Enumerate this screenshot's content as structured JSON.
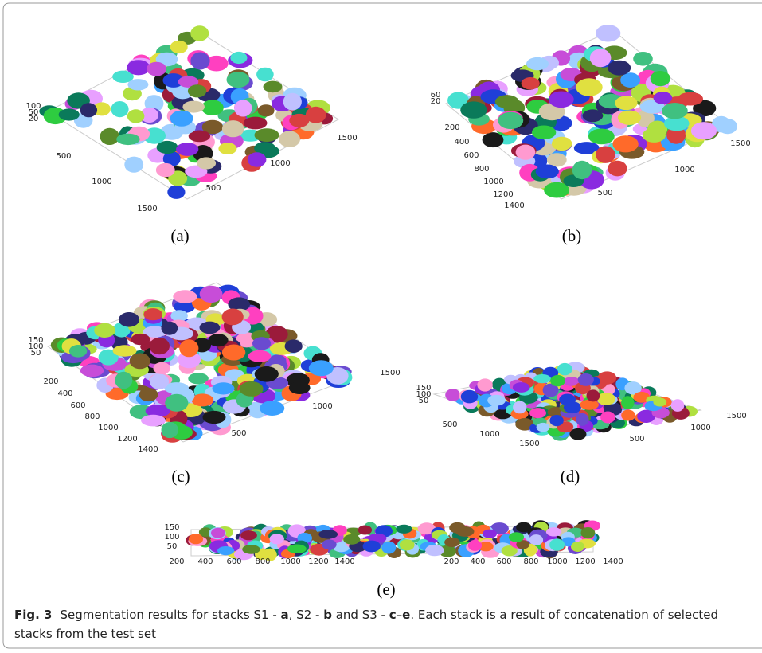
{
  "panels": [
    {
      "label": "(a)",
      "z_ticks": [
        100,
        50,
        20
      ],
      "left_ticks": [
        500,
        1000,
        1500
      ],
      "right_ticks": [
        500,
        1000,
        1500
      ]
    },
    {
      "label": "(b)",
      "z_ticks": [
        60,
        20
      ],
      "left_ticks": [
        200,
        400,
        600,
        800,
        1000,
        1200,
        1400
      ],
      "right_ticks": [
        500,
        1000,
        1500
      ]
    },
    {
      "label": "(c)",
      "z_ticks": [
        150,
        100,
        50
      ],
      "left_ticks": [
        200,
        400,
        600,
        800,
        1000,
        1200,
        1400
      ],
      "right_ticks": [
        500,
        1000,
        1500
      ]
    },
    {
      "label": "(d)",
      "z_ticks": [
        150,
        100,
        50
      ],
      "left_ticks": [
        500,
        1000,
        1500
      ],
      "right_ticks": [
        500,
        1000,
        1500
      ]
    },
    {
      "label": "(e)",
      "z_ticks": [
        150,
        100,
        50
      ],
      "left_ticks": [
        200,
        400,
        600,
        800,
        1000,
        1200,
        1400
      ],
      "right_ticks": [
        200,
        400,
        600,
        800,
        1000,
        1200,
        1400
      ]
    }
  ],
  "caption": {
    "label": "Fig. 3",
    "parts": [
      "Segmentation results for stacks S1 - ",
      "a",
      ", S2 - ",
      "b",
      " and S3 - ",
      "c",
      "–",
      "e",
      ". Each stack is a result of concatenation of selected stacks from the test set"
    ]
  }
}
